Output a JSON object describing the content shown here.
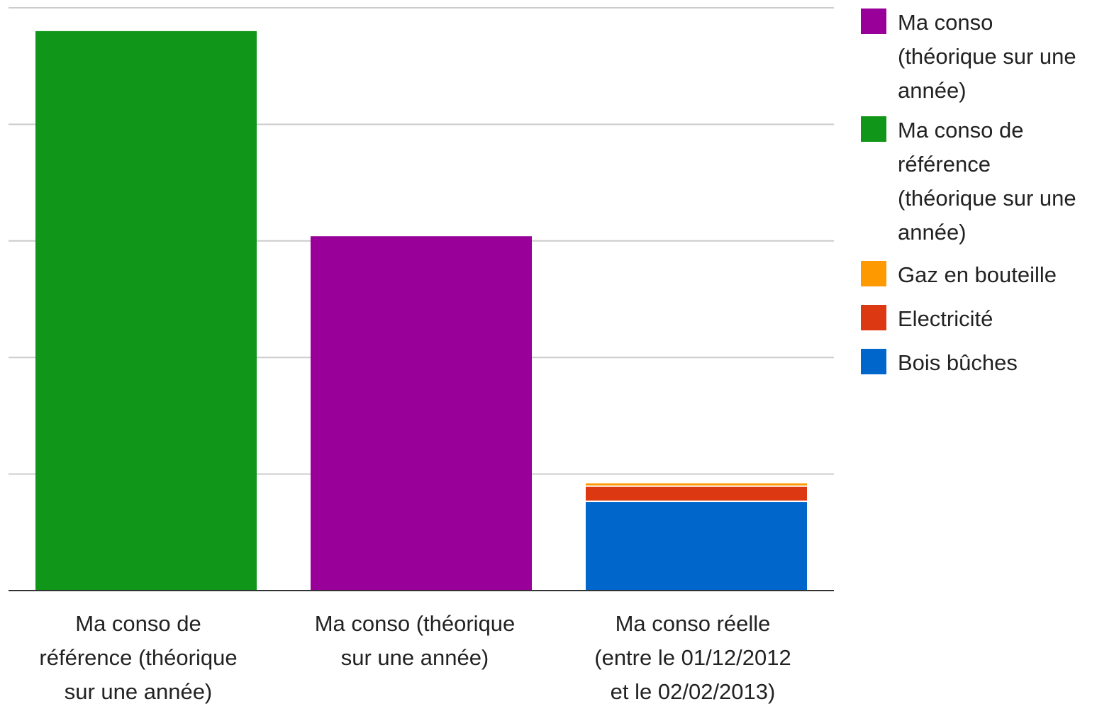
{
  "chart_data": {
    "type": "bar",
    "stacked": true,
    "categories": [
      "Ma conso de\nréférence (théorique\nsur une année)",
      "Ma conso (théorique\nsur une année)",
      "Ma conso réelle\n(entre le 01/12/2012\net le 02/02/2013)"
    ],
    "series": [
      {
        "name": "Ma conso (théorique sur une année)",
        "color": "#990099",
        "values": [
          0,
          3.04,
          0
        ]
      },
      {
        "name": "Ma conso de référence (théorique sur une année)",
        "color": "#109618",
        "values": [
          4.8,
          0,
          0
        ]
      },
      {
        "name": "Gaz en bouteille",
        "color": "#FF9900",
        "values": [
          0,
          0,
          0.03
        ]
      },
      {
        "name": "Electricité",
        "color": "#DC3912",
        "values": [
          0,
          0,
          0.13
        ]
      },
      {
        "name": "Bois bûches",
        "color": "#0066CC",
        "values": [
          0,
          0,
          0.76
        ]
      }
    ],
    "stack_order": [
      "Bois bûches",
      "Electricité",
      "Gaz en bouteille",
      "Ma conso (théorique sur une année)",
      "Ma conso de référence (théorique sur une année)"
    ],
    "ylim": [
      0,
      5
    ],
    "y_gridlines": [
      1,
      2,
      3,
      4,
      5
    ],
    "y_tick_labels_visible": false,
    "grid": true,
    "legend_position": "right",
    "title": "",
    "xlabel": "",
    "ylabel": ""
  }
}
